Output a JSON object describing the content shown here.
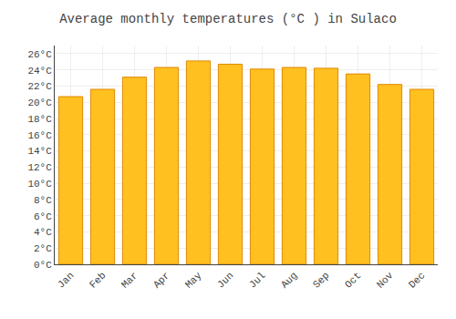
{
  "chart_data": {
    "type": "bar",
    "title": "Average monthly temperatures (°C ) in Sulaco",
    "categories": [
      "Jan",
      "Feb",
      "Mar",
      "Apr",
      "May",
      "Jun",
      "Jul",
      "Aug",
      "Sep",
      "Oct",
      "Nov",
      "Dec"
    ],
    "values": [
      20.7,
      21.6,
      23.1,
      24.3,
      25.1,
      24.7,
      24.1,
      24.3,
      24.2,
      23.5,
      22.2,
      21.6
    ],
    "color": "#FFC020",
    "ylim": [
      0,
      27
    ],
    "yticks": [
      {
        "value": 0,
        "label": "0°C"
      },
      {
        "value": 2,
        "label": "2°C"
      },
      {
        "value": 4,
        "label": "4°C"
      },
      {
        "value": 6,
        "label": "6°C"
      },
      {
        "value": 8,
        "label": "8°C"
      },
      {
        "value": 10,
        "label": "10°C"
      },
      {
        "value": 12,
        "label": "12°C"
      },
      {
        "value": 14,
        "label": "14°C"
      },
      {
        "value": 16,
        "label": "16°C"
      },
      {
        "value": 18,
        "label": "18°C"
      },
      {
        "value": 20,
        "label": "20°C"
      },
      {
        "value": 22,
        "label": "22°C"
      },
      {
        "value": 24,
        "label": "24°C"
      },
      {
        "value": 26,
        "label": "26°C"
      }
    ],
    "grid": true
  }
}
